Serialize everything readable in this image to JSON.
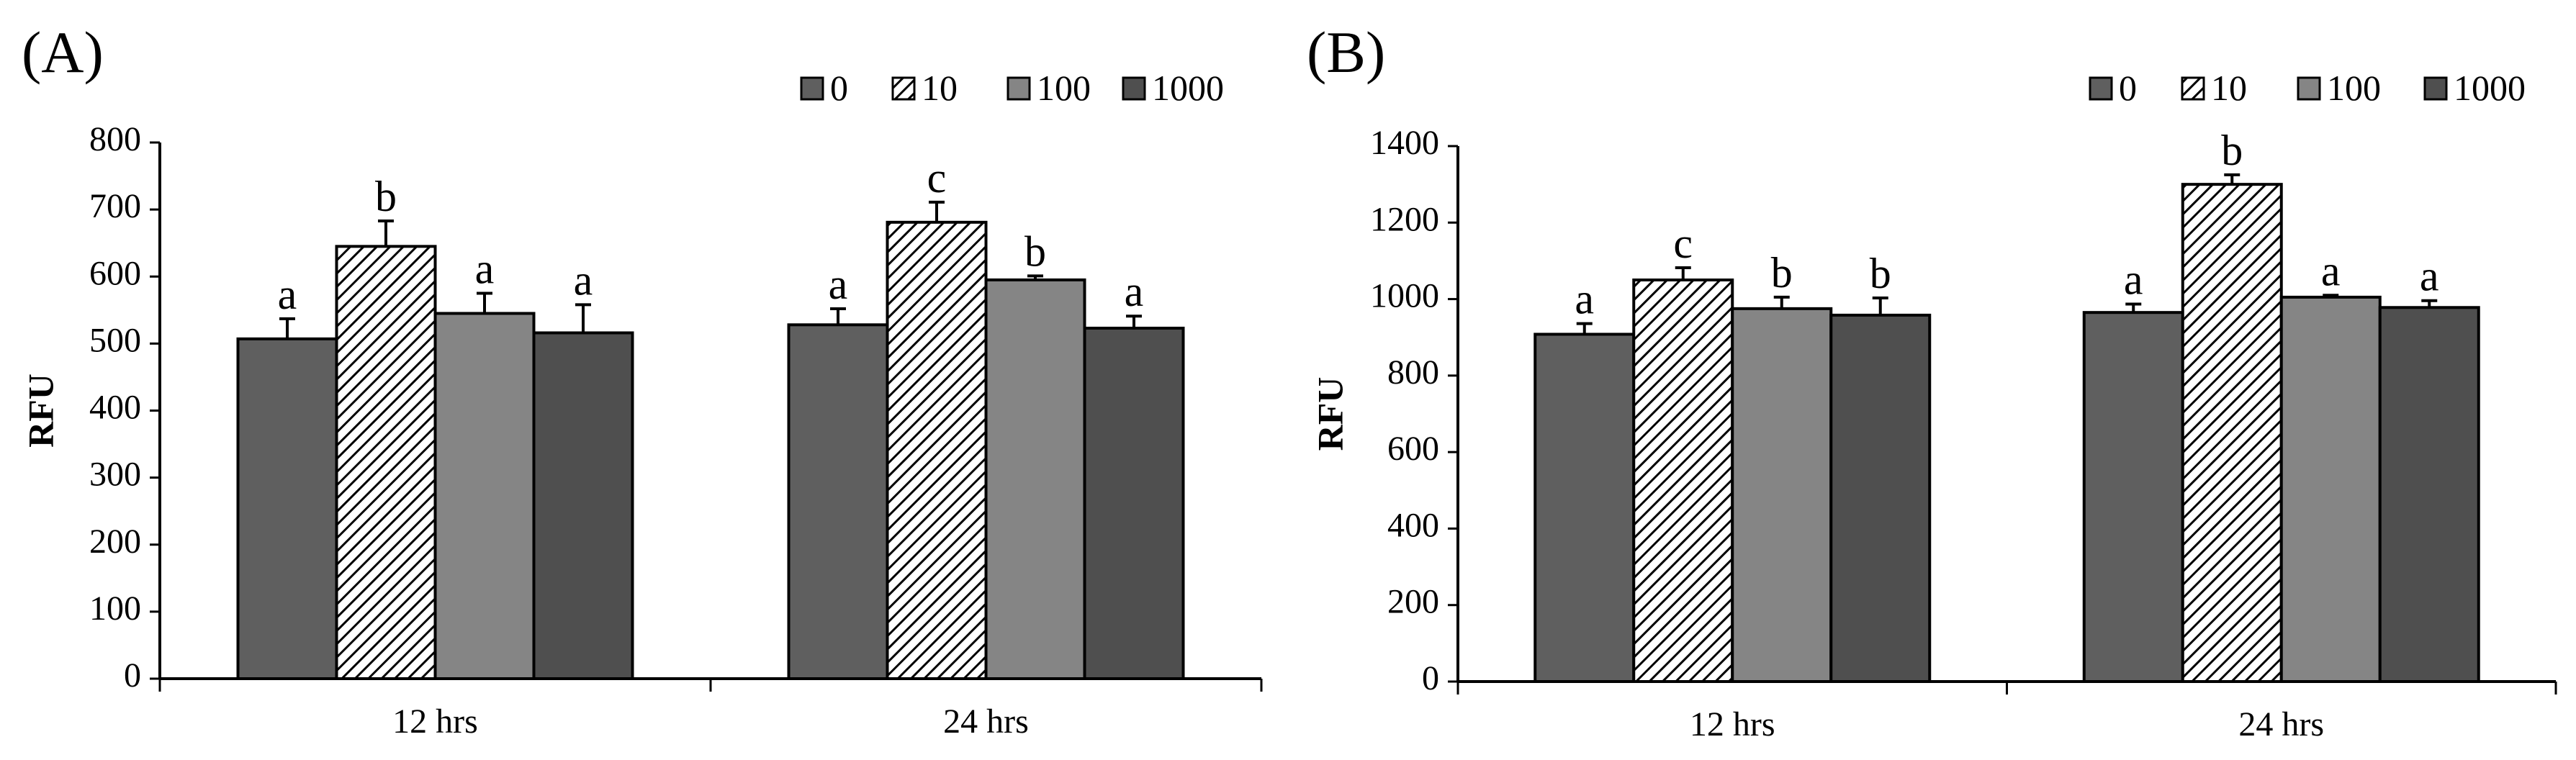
{
  "chart_data": [
    {
      "panel_label": "(A)",
      "type": "bar",
      "ylabel": "RFU",
      "xlabel": "",
      "ylim": [
        0,
        800
      ],
      "yticks": [
        0,
        100,
        200,
        300,
        400,
        500,
        600,
        700,
        800
      ],
      "categories": [
        "12 hrs",
        "24 hrs"
      ],
      "legend_position": "top-right",
      "series": [
        {
          "name": "0",
          "values": [
            507,
            528
          ],
          "errors": [
            30,
            24
          ],
          "letters": [
            "a",
            "a"
          ],
          "fill": "#5f5f5f",
          "pattern": "solid"
        },
        {
          "name": "10",
          "values": [
            645,
            681
          ],
          "errors": [
            38,
            30
          ],
          "letters": [
            "b",
            "c"
          ],
          "fill": "#ffffff",
          "pattern": "hatch"
        },
        {
          "name": "100",
          "values": [
            545,
            595
          ],
          "errors": [
            30,
            6
          ],
          "letters": [
            "a",
            "b"
          ],
          "fill": "#858585",
          "pattern": "solid"
        },
        {
          "name": "1000",
          "values": [
            516,
            523
          ],
          "errors": [
            42,
            18
          ],
          "letters": [
            "a",
            "a"
          ],
          "fill": "#4f4f4f",
          "pattern": "solid"
        }
      ]
    },
    {
      "panel_label": "(B)",
      "type": "bar",
      "ylabel": "RFU",
      "xlabel": "",
      "ylim": [
        0,
        1400
      ],
      "yticks": [
        0,
        200,
        400,
        600,
        800,
        1000,
        1200,
        1400
      ],
      "categories": [
        "12 hrs",
        "24 hrs"
      ],
      "legend_position": "top-right",
      "series": [
        {
          "name": "0",
          "values": [
            908,
            965
          ],
          "errors": [
            28,
            22
          ],
          "letters": [
            "a",
            "a"
          ],
          "fill": "#5f5f5f",
          "pattern": "solid"
        },
        {
          "name": "10",
          "values": [
            1050,
            1300
          ],
          "errors": [
            32,
            25
          ],
          "letters": [
            "c",
            "b"
          ],
          "fill": "#ffffff",
          "pattern": "hatch"
        },
        {
          "name": "100",
          "values": [
            975,
            1005
          ],
          "errors": [
            30,
            5
          ],
          "letters": [
            "b",
            "a"
          ],
          "fill": "#858585",
          "pattern": "solid"
        },
        {
          "name": "1000",
          "values": [
            958,
            978
          ],
          "errors": [
            45,
            18
          ],
          "letters": [
            "b",
            "a"
          ],
          "fill": "#4f4f4f",
          "pattern": "solid"
        }
      ]
    }
  ]
}
